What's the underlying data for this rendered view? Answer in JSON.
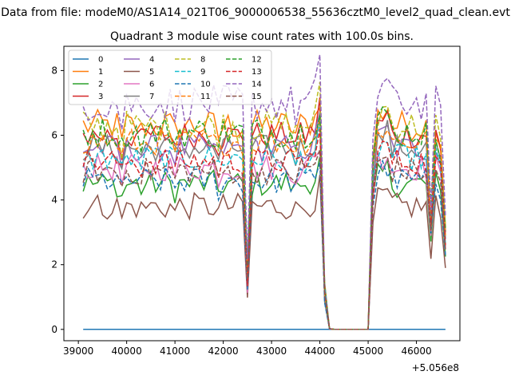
{
  "figure": {
    "suptitle": "Data from file: modeM0/AS1A14_021T06_9000006538_55636cztM0_level2_quad_clean.evt"
  },
  "chart_data": {
    "type": "line",
    "title": "Quadrant 3 module wise count rates with 100.0s bins.",
    "xlabel": "",
    "ylabel": "",
    "xlim": [
      38700,
      46900
    ],
    "ylim": [
      -0.35,
      8.75
    ],
    "x_offset_label": "+5.056e8",
    "xticks": [
      39000,
      40000,
      41000,
      42000,
      43000,
      44000,
      45000,
      46000
    ],
    "xtick_labels": [
      "39000",
      "40000",
      "41000",
      "42000",
      "43000",
      "44000",
      "45000",
      "46000"
    ],
    "yticks": [
      0,
      2,
      4,
      6,
      8
    ],
    "ytick_labels": [
      "0",
      "2",
      "4",
      "6",
      "8"
    ],
    "legend_position": "upper-left",
    "legend_columns": 4,
    "x_start": 39100,
    "x_step": 100,
    "segment1_end": 44200,
    "gap_end": 45100,
    "segment2_end": 46600,
    "series": [
      {
        "name": "0",
        "color": "#1f77b4",
        "dash": "solid",
        "level": 0.0,
        "amp": 0.0
      },
      {
        "name": "1",
        "color": "#ff7f0e",
        "dash": "solid",
        "level": 6.3,
        "amp": 0.35
      },
      {
        "name": "2",
        "color": "#2ca02c",
        "dash": "solid",
        "level": 4.5,
        "amp": 0.3
      },
      {
        "name": "3",
        "color": "#d62728",
        "dash": "solid",
        "level": 6.0,
        "amp": 0.3
      },
      {
        "name": "4",
        "color": "#9467bd",
        "dash": "solid",
        "level": 5.6,
        "amp": 0.3
      },
      {
        "name": "5",
        "color": "#8c564b",
        "dash": "solid",
        "level": 3.8,
        "amp": 0.3
      },
      {
        "name": "6",
        "color": "#e377c2",
        "dash": "solid",
        "level": 5.0,
        "amp": 0.3
      },
      {
        "name": "7",
        "color": "#7f7f7f",
        "dash": "solid",
        "level": 5.6,
        "amp": 0.3
      },
      {
        "name": "8",
        "color": "#bcbd22",
        "dash": "dashed",
        "level": 6.3,
        "amp": 0.35
      },
      {
        "name": "9",
        "color": "#17becf",
        "dash": "dashed",
        "level": 5.3,
        "amp": 0.3
      },
      {
        "name": "10",
        "color": "#1f77b4",
        "dash": "dashed",
        "level": 4.6,
        "amp": 0.3
      },
      {
        "name": "11",
        "color": "#ff7f0e",
        "dash": "dashed",
        "level": 5.8,
        "amp": 0.3
      },
      {
        "name": "12",
        "color": "#2ca02c",
        "dash": "dashed",
        "level": 6.1,
        "amp": 0.35
      },
      {
        "name": "13",
        "color": "#d62728",
        "dash": "dashed",
        "level": 5.2,
        "amp": 0.3
      },
      {
        "name": "14",
        "color": "#9467bd",
        "dash": "dashed",
        "level": 7.0,
        "amp": 0.4
      },
      {
        "name": "15",
        "color": "#8c564b",
        "dash": "dashed",
        "level": 4.9,
        "amp": 0.3
      }
    ]
  }
}
